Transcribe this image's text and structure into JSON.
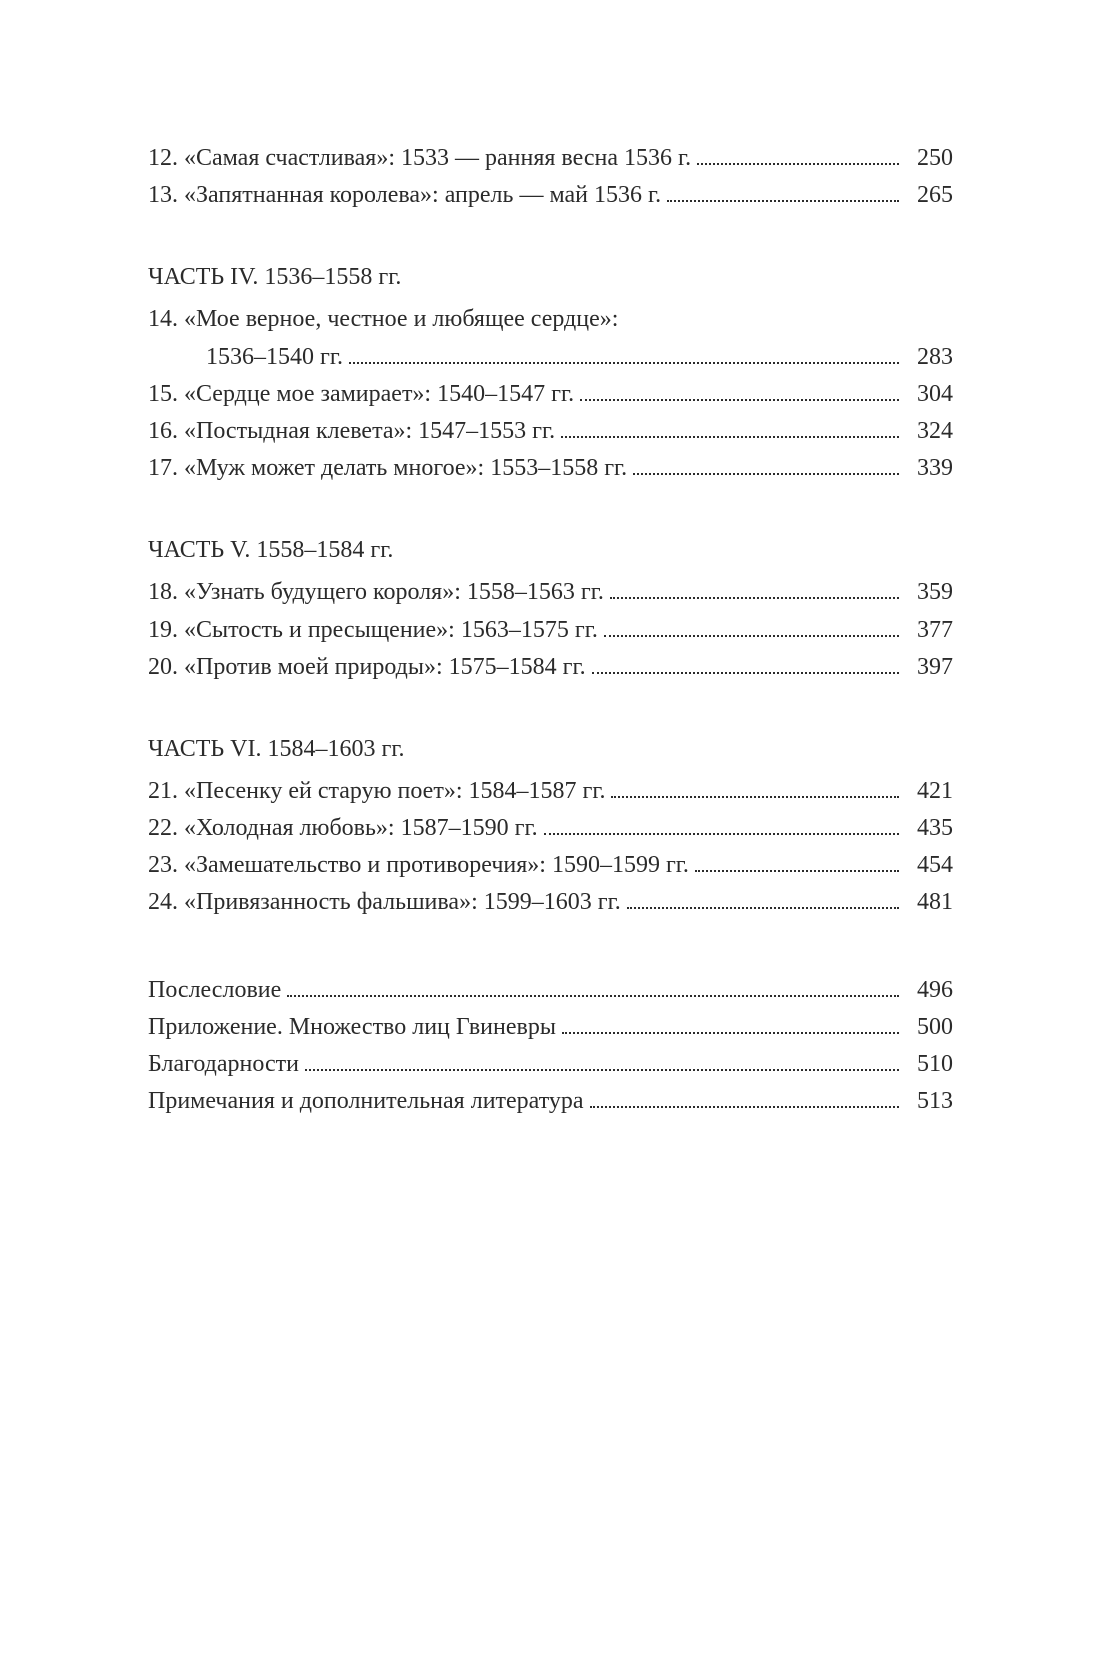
{
  "colors": {
    "background": "#ffffff",
    "text": "#2b2b2b",
    "dots": "#2b2b2b"
  },
  "typography": {
    "font_family": "Georgia, 'Times New Roman', serif",
    "font_size": 24,
    "line_height": 1.55
  },
  "top_entries": [
    {
      "label": "12. «Самая счастливая»: 1533 — ранняя весна 1536 г.",
      "page": "250"
    },
    {
      "label": "13. «Запятнанная королева»: апрель — май 1536 г.",
      "page": "265"
    }
  ],
  "sections": [
    {
      "heading": "ЧАСТЬ IV. 1536–1558 гг.",
      "entries": [
        {
          "multiline": true,
          "line1": "14. «Мое верное, честное и любящее сердце»:",
          "line2": "1536–1540 гг.",
          "page": "283"
        },
        {
          "label": "15. «Сердце мое замирает»: 1540–1547 гг.",
          "page": "304"
        },
        {
          "label": "16. «Постыдная клевета»: 1547–1553 гг.",
          "page": "324"
        },
        {
          "label": "17. «Муж может делать многое»: 1553–1558 гг.",
          "page": "339"
        }
      ]
    },
    {
      "heading": "ЧАСТЬ V. 1558–1584 гг.",
      "entries": [
        {
          "label": "18. «Узнать будущего короля»: 1558–1563 гг.",
          "page": "359"
        },
        {
          "label": "19. «Сытость и пресыщение»: 1563–1575 гг.",
          "page": "377"
        },
        {
          "label": "20. «Против моей природы»: 1575–1584 гг.",
          "page": "397"
        }
      ]
    },
    {
      "heading": "ЧАСТЬ VI. 1584–1603 гг.",
      "entries": [
        {
          "label": "21. «Песенку ей старую поет»: 1584–1587 гг.",
          "page": "421"
        },
        {
          "label": "22. «Холодная любовь»: 1587–1590 гг.",
          "page": "435"
        },
        {
          "label": "23. «Замешательство и противоречия»: 1590–1599 гг.",
          "page": "454"
        },
        {
          "label": "24. «Привязанность фальшива»: 1599–1603 гг.",
          "page": "481"
        }
      ]
    }
  ],
  "back_matter": [
    {
      "label": "Послесловие",
      "page": "496"
    },
    {
      "label": "Приложение. Множество лиц Гвиневры",
      "page": "500"
    },
    {
      "label": "Благодарности",
      "page": "510"
    },
    {
      "label": "Примечания и дополнительная литература",
      "page": "513"
    }
  ]
}
